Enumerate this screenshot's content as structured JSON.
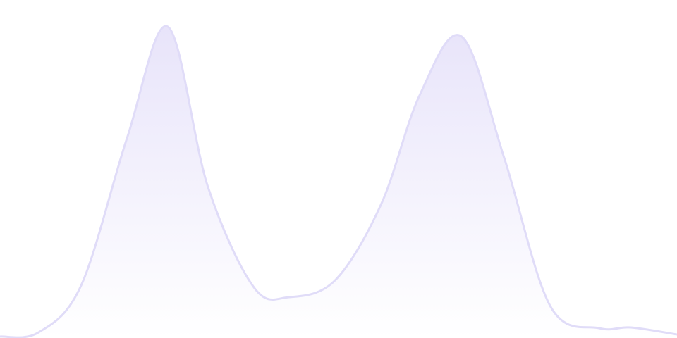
{
  "chart_data": {
    "type": "area",
    "title": "",
    "xlabel": "",
    "ylabel": "",
    "xlim": [
      0,
      100
    ],
    "ylim": [
      0,
      480
    ],
    "grid": false,
    "legend": "none",
    "series": [
      {
        "x": [
          0,
          5.7,
          12,
          18.8,
          24.8,
          30.7,
          37.5,
          42.7,
          49.5,
          56.3,
          62,
          68.2,
          74.5,
          81.3,
          88.5,
          93.2,
          100
        ],
        "values": [
          2,
          8,
          75,
          285,
          442,
          215,
          72,
          58,
          82,
          190,
          345,
          428,
          255,
          45,
          14,
          15,
          5
        ]
      }
    ],
    "colors": {
      "line": "#e0dcf8",
      "fill_top": "#e8e4fa",
      "fill_bottom": "#ffffff"
    }
  }
}
